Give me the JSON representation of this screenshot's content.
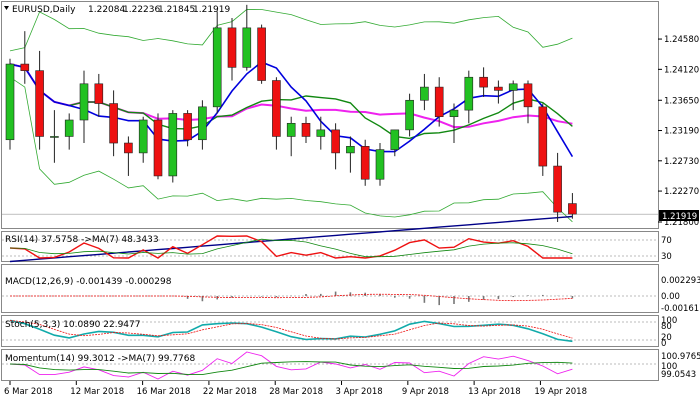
{
  "window": {
    "symbol_label": "EURUSD,Daily",
    "ohlc": [
      "1.22084",
      "1.22236",
      "1.21845",
      "1.21919"
    ],
    "current_price": "1.21919"
  },
  "panes": {
    "rsi": {
      "label": "RSI(14) 37.5758  ->MA(7) 48.3433",
      "levels": [
        "70",
        "30"
      ]
    },
    "macd": {
      "label": "MACD(12,26,9) -0.001439 -0.000298",
      "levels": [
        "0.002293",
        "0.00",
        "-0.001617"
      ]
    },
    "stoch": {
      "label": "Stoch(5,3,3) 10.0890 22.9477",
      "levels": [
        "100",
        "80",
        "20",
        "0"
      ]
    },
    "momentum": {
      "label": "Momentum(14) 99.3012  ->MA(7) 99.7768",
      "levels": [
        "100.9765",
        "100",
        "99.0543"
      ]
    }
  },
  "colors": {
    "bull": "#22c122",
    "bear": "#ee1111",
    "blue_ma": "#0000dd",
    "magenta_ma": "#ee22ee",
    "green_ma": "#118811",
    "band": "#33aa33",
    "navy": "#000088",
    "grid": "#cccccc"
  },
  "chart_data": {
    "type": "candlestick",
    "price_axis_ticks": [
      "1.24580",
      "1.24120",
      "1.23650",
      "1.23190",
      "1.22730",
      "1.22270",
      "1.21800"
    ],
    "time_labels": [
      "6 Mar 2018",
      "12 Mar 2018",
      "16 Mar 2018",
      "22 Mar 2018",
      "28 Mar 2018",
      "3 Apr 2018",
      "9 Apr 2018",
      "13 Apr 2018",
      "19 Apr 2018"
    ],
    "candles": [
      [
        1.2305,
        1.2428,
        1.229,
        1.242
      ],
      [
        1.242,
        1.247,
        1.239,
        1.241
      ],
      [
        1.241,
        1.244,
        1.229,
        1.231
      ],
      [
        1.231,
        1.235,
        1.227,
        1.231
      ],
      [
        1.231,
        1.2345,
        1.229,
        1.2335
      ],
      [
        1.2335,
        1.241,
        1.23,
        1.239
      ],
      [
        1.239,
        1.2405,
        1.234,
        1.236
      ],
      [
        1.236,
        1.238,
        1.228,
        1.23
      ],
      [
        1.23,
        1.231,
        1.225,
        1.2285
      ],
      [
        1.2285,
        1.234,
        1.227,
        1.2335
      ],
      [
        1.2335,
        1.2345,
        1.2245,
        1.225
      ],
      [
        1.225,
        1.235,
        1.224,
        1.2345
      ],
      [
        1.2345,
        1.235,
        1.2295,
        1.2305
      ],
      [
        1.2305,
        1.2365,
        1.229,
        1.2355
      ],
      [
        1.2355,
        1.25,
        1.2345,
        1.2475
      ],
      [
        1.2475,
        1.249,
        1.2395,
        1.2415
      ],
      [
        1.2415,
        1.251,
        1.241,
        1.2475
      ],
      [
        1.2475,
        1.248,
        1.239,
        1.2395
      ],
      [
        1.2395,
        1.24,
        1.229,
        1.231
      ],
      [
        1.231,
        1.234,
        1.228,
        1.233
      ],
      [
        1.233,
        1.234,
        1.23,
        1.231
      ],
      [
        1.231,
        1.234,
        1.229,
        1.232
      ],
      [
        1.232,
        1.233,
        1.226,
        1.2285
      ],
      [
        1.2285,
        1.231,
        1.2255,
        1.2295
      ],
      [
        1.2295,
        1.2305,
        1.2235,
        1.2245
      ],
      [
        1.2245,
        1.23,
        1.2235,
        1.229
      ],
      [
        1.229,
        1.232,
        1.228,
        1.232
      ],
      [
        1.232,
        1.2375,
        1.231,
        1.2365
      ],
      [
        1.2365,
        1.2405,
        1.235,
        1.2385
      ],
      [
        1.2385,
        1.24,
        1.2325,
        1.234
      ],
      [
        1.234,
        1.236,
        1.23,
        1.235
      ],
      [
        1.235,
        1.241,
        1.233,
        1.24
      ],
      [
        1.24,
        1.2415,
        1.237,
        1.2385
      ],
      [
        1.2385,
        1.2395,
        1.236,
        1.238
      ],
      [
        1.238,
        1.2395,
        1.235,
        1.239
      ],
      [
        1.239,
        1.2395,
        1.233,
        1.2355
      ],
      [
        1.2355,
        1.236,
        1.225,
        1.2265
      ],
      [
        1.2265,
        1.2285,
        1.218,
        1.2195
      ],
      [
        1.2208,
        1.2224,
        1.2185,
        1.2192
      ]
    ]
  }
}
